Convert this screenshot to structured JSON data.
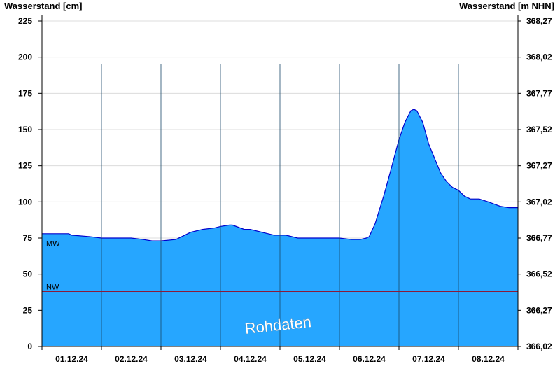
{
  "chart_data": {
    "type": "area",
    "left_axis_title": "Wasserstand [cm]",
    "right_axis_title": "Wasserstand [m NHN]",
    "watermark": "Rohdaten",
    "x_tick_labels": [
      "01.12.24",
      "02.12.24",
      "03.12.24",
      "04.12.24",
      "05.12.24",
      "06.12.24",
      "07.12.24",
      "08.12.24"
    ],
    "x_range_days": [
      0,
      8
    ],
    "ylim": [
      0,
      225
    ],
    "y_ticks": [
      0,
      25,
      50,
      75,
      100,
      125,
      150,
      175,
      200,
      225
    ],
    "y_tick_labels": [
      "0",
      "25",
      "50",
      "75",
      "100",
      "125",
      "150",
      "175",
      "200",
      "225"
    ],
    "y2_tick_labels": [
      "366,02",
      "366,27",
      "366,52",
      "366,77",
      "367,02",
      "367,27",
      "367,52",
      "367,77",
      "368,02",
      "368,27"
    ],
    "grid": true,
    "reference_lines": [
      {
        "label": "MW",
        "value": 68,
        "color": "#1e7a3c"
      },
      {
        "label": "NW",
        "value": 38,
        "color": "#8b1a3a"
      }
    ],
    "series": [
      {
        "fill_color": "#26a6ff",
        "line_color": "#0000cc",
        "x_days": [
          0.0,
          0.15,
          0.45,
          0.5,
          0.8,
          1.0,
          1.2,
          1.5,
          1.7,
          1.85,
          2.0,
          2.25,
          2.35,
          2.5,
          2.7,
          2.9,
          3.0,
          3.15,
          3.2,
          3.4,
          3.5,
          3.7,
          3.9,
          4.1,
          4.3,
          4.5,
          4.8,
          5.0,
          5.2,
          5.35,
          5.45,
          5.5,
          5.6,
          5.75,
          5.85,
          6.0,
          6.1,
          6.2,
          6.25,
          6.3,
          6.4,
          6.5,
          6.6,
          6.7,
          6.8,
          6.9,
          7.0,
          7.1,
          7.2,
          7.35,
          7.5,
          7.7,
          7.85,
          8.0
        ],
        "values": [
          78,
          78,
          78,
          77,
          76,
          75,
          75,
          75,
          74,
          73,
          73,
          74,
          76,
          79,
          81,
          82,
          83,
          84,
          84,
          81,
          81,
          79,
          77,
          77,
          75,
          75,
          75,
          75,
          74,
          74,
          75,
          76,
          85,
          105,
          120,
          143,
          155,
          163,
          164,
          163,
          155,
          140,
          130,
          120,
          114,
          110,
          108,
          104,
          102,
          102,
          100,
          97,
          96,
          96
        ]
      }
    ]
  }
}
